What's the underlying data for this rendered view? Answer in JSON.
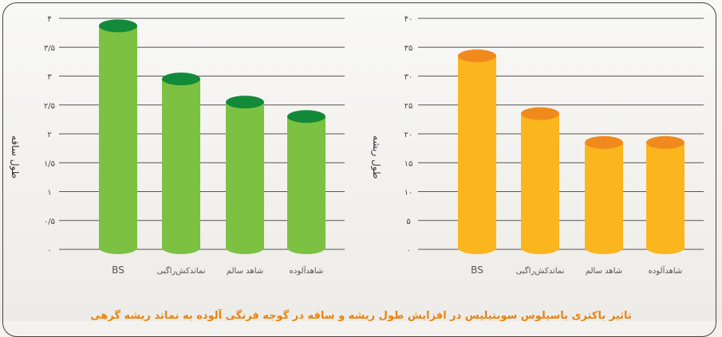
{
  "caption": "تاثیر باکتری باسیلوس سوبتیلیس در افزایش طول ریشه و ساقه در گوجه فرنگی آلوده به نماتد ریشه گرهی",
  "chart_data": [
    {
      "type": "bar",
      "ylabel": "طول ساقه",
      "yticks": [
        "۰",
        "۰/۵",
        "۱",
        "۱/۵",
        "۲",
        "۲/۵",
        "۳",
        "۳/۵",
        "۴"
      ],
      "ylim": [
        0,
        4
      ],
      "categories": [
        "BS",
        "نماتدکش‌راگبی",
        "شاهد سالم",
        "شاهدآلوده"
      ],
      "values": [
        3.87,
        2.95,
        2.55,
        2.3
      ],
      "colors": {
        "body": "#7dc142",
        "top": "#138a3a"
      },
      "grid": true
    },
    {
      "type": "bar",
      "ylabel": "طول ریشه",
      "yticks": [
        "۰",
        "۵",
        "۱۰",
        "۱۵",
        "۲۰",
        "۲۵",
        "۳۰",
        "۳۵",
        "۴۰"
      ],
      "ylim": [
        0,
        40
      ],
      "categories": [
        "BS",
        "نماتدکش‌راگبی",
        "شاهد سالم",
        "شاهدآلوده"
      ],
      "values": [
        33.5,
        23.5,
        18.5,
        18.5
      ],
      "colors": {
        "body": "#fbb51d",
        "top": "#f08a1d"
      },
      "grid": true
    }
  ]
}
